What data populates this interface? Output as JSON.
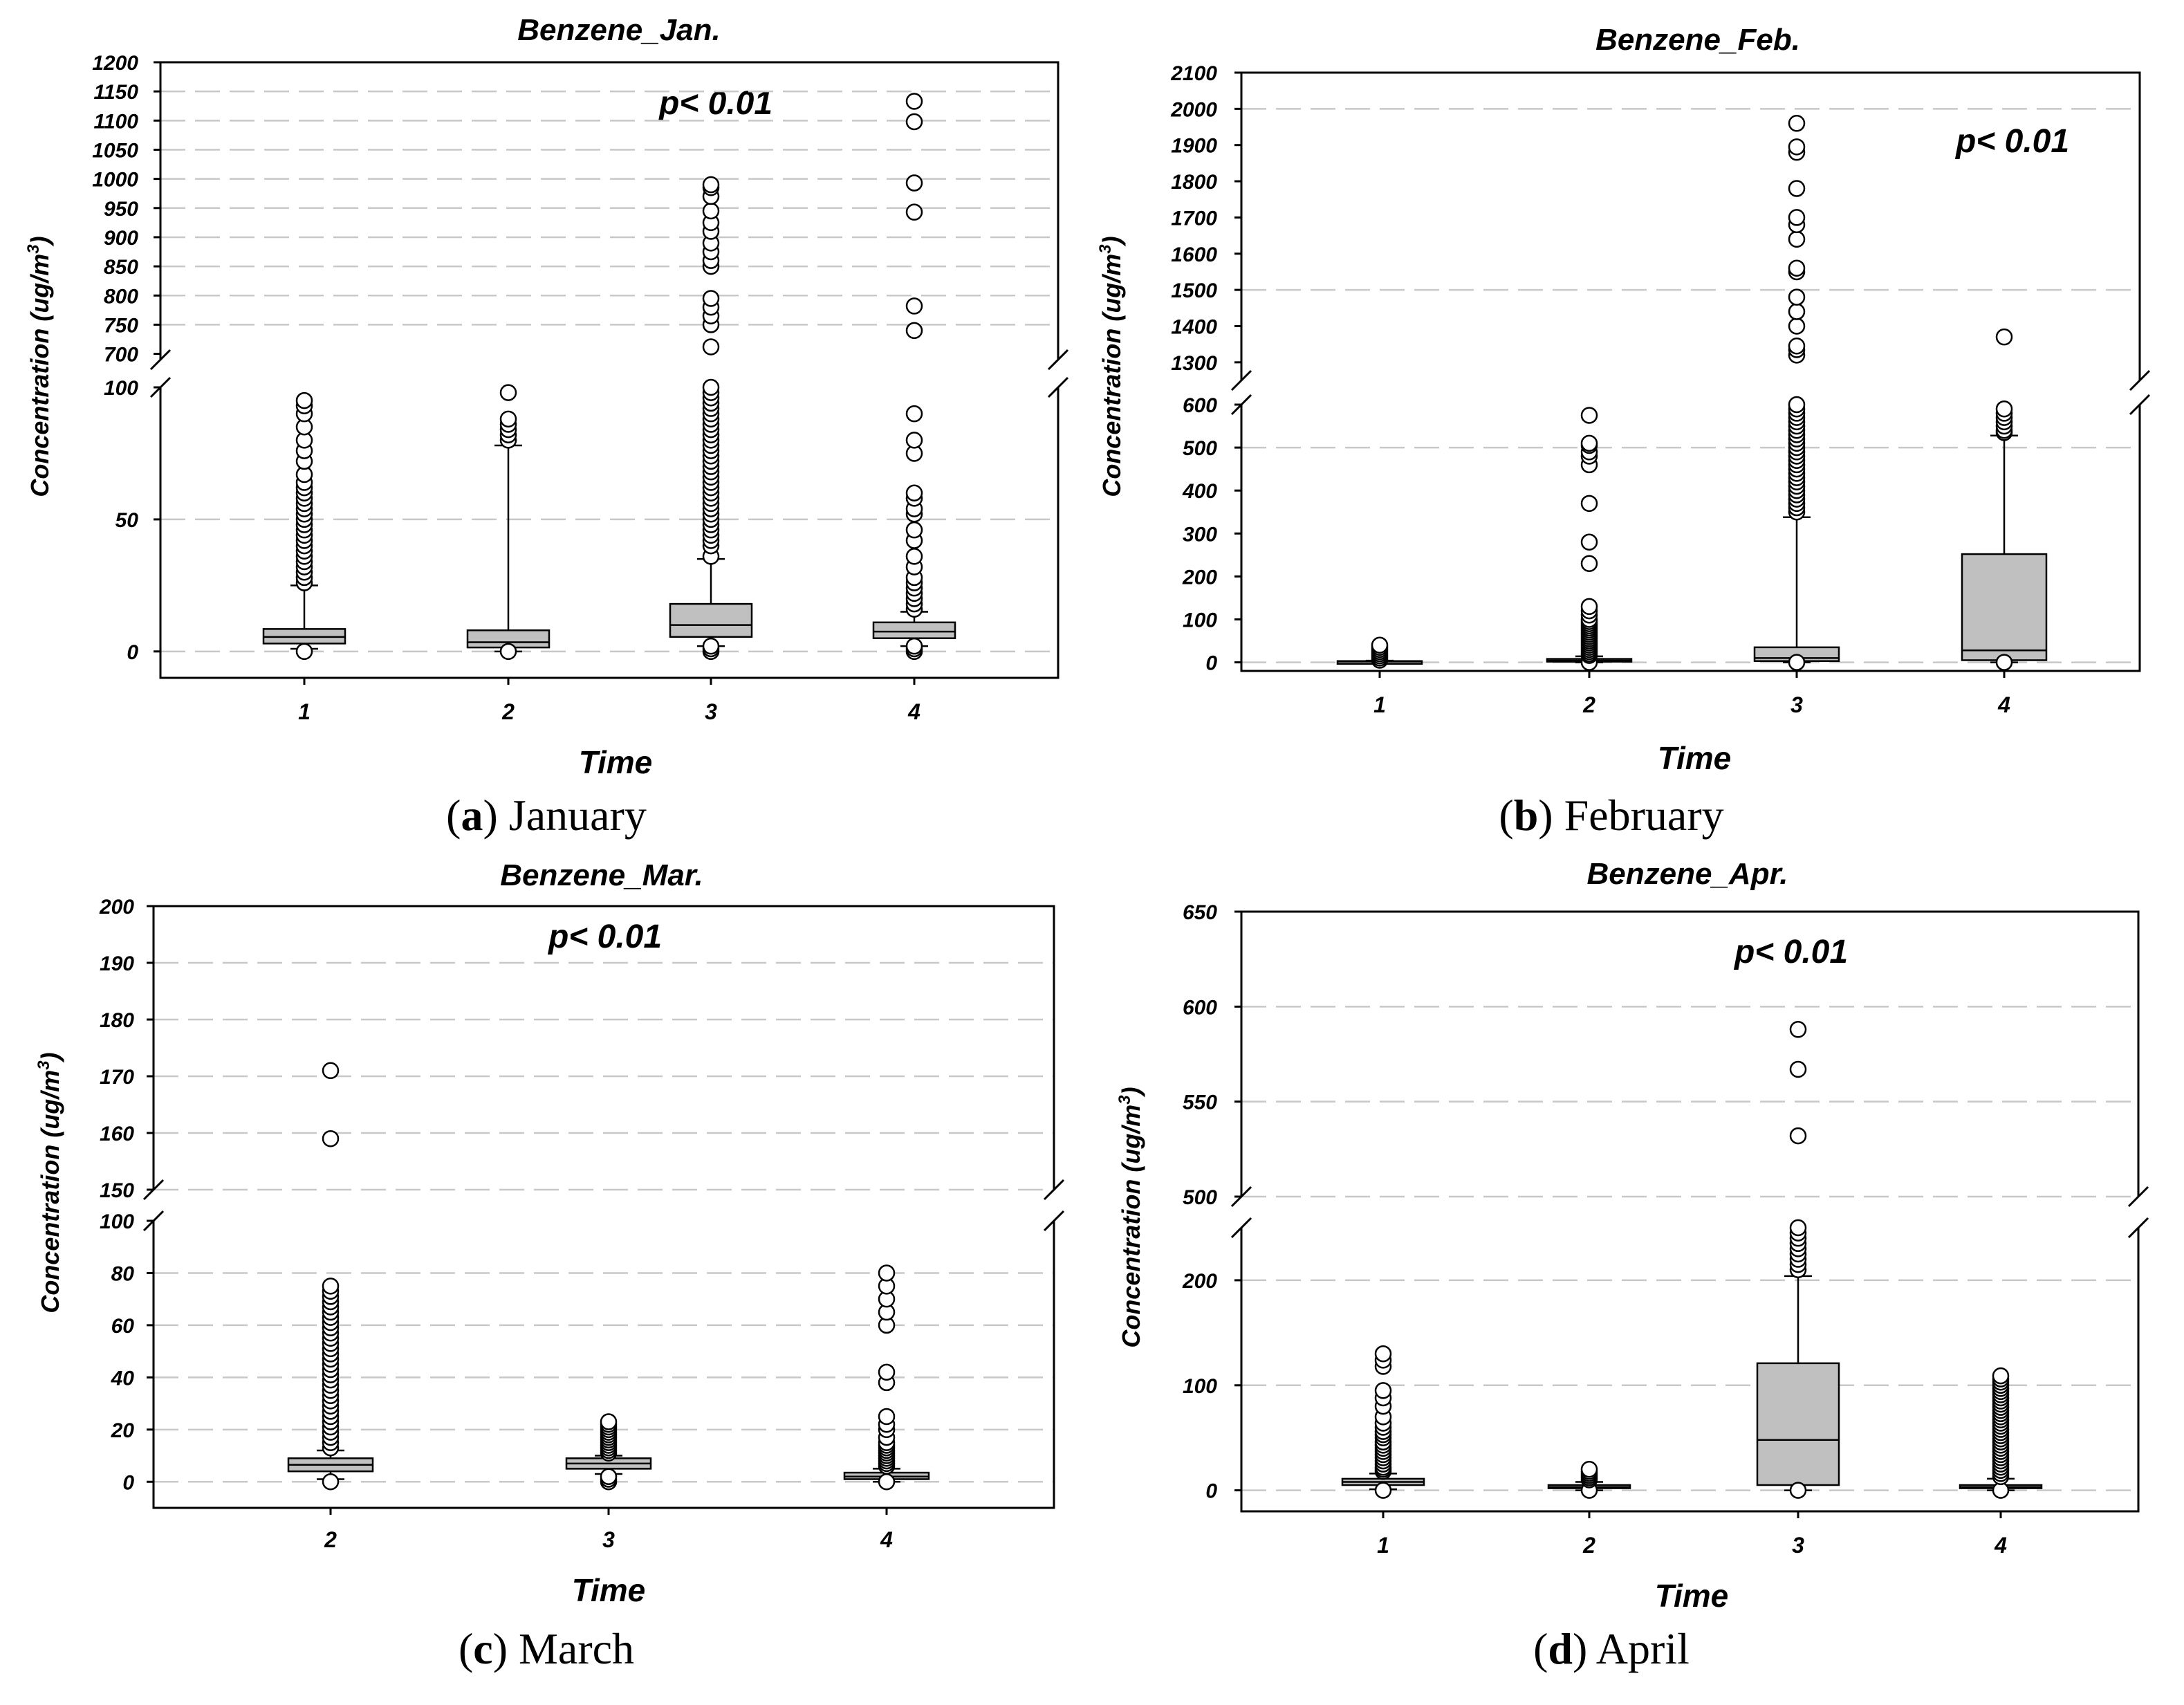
{
  "chart_data": [
    {
      "panel": "a",
      "type": "box",
      "title": "Benzene_Jan.",
      "annotation": "p< 0.01",
      "caption_letter": "a",
      "caption_text": " January",
      "xlabel": "Time",
      "ylabel_main": "Concentration (ug/m",
      "ylabel_sup": "3",
      "ylabel_tail": ")",
      "categories": [
        "1",
        "2",
        "3",
        "4"
      ],
      "y_axis": {
        "lower": {
          "range": [
            -10,
            100
          ],
          "ticks": [
            0,
            50,
            100
          ],
          "tick_labels": [
            "0",
            "50",
            "100"
          ],
          "grid": [
            0,
            50
          ]
        },
        "upper": {
          "range": [
            690,
            1200
          ],
          "ticks": [
            700,
            750,
            800,
            850,
            900,
            950,
            1000,
            1050,
            1100,
            1150,
            1200
          ],
          "tick_labels": [
            "700",
            "750",
            "800",
            "850",
            "900",
            "950",
            "1000",
            "1050",
            "1100",
            "1150",
            "1200"
          ],
          "grid": [
            750,
            800,
            850,
            900,
            950,
            1000,
            1050,
            1100,
            1150
          ]
        }
      },
      "boxes": [
        {
          "category": "1",
          "q1": 3,
          "median": 5.5,
          "q3": 8.5,
          "whisker_low": 1,
          "whisker_high": 25,
          "outliers": [
            0,
            26,
            28,
            30,
            32,
            34,
            36,
            38,
            40,
            42,
            44,
            46,
            48,
            50,
            52,
            54,
            56,
            58,
            60,
            62,
            64,
            67,
            72,
            76,
            80,
            85,
            90,
            93,
            95
          ]
        },
        {
          "category": "2",
          "q1": 1.5,
          "median": 3.5,
          "q3": 8,
          "whisker_low": 0,
          "whisker_high": 78,
          "outliers": [
            0,
            80,
            82,
            84,
            86,
            88,
            98
          ]
        },
        {
          "category": "3",
          "q1": 5.5,
          "median": 10,
          "q3": 18,
          "whisker_low": 2,
          "whisker_high": 35,
          "outliers": [
            0,
            1,
            2,
            36,
            40,
            42,
            44,
            46,
            48,
            50,
            52,
            54,
            56,
            58,
            60,
            62,
            64,
            66,
            68,
            70,
            72,
            74,
            76,
            78,
            80,
            82,
            84,
            86,
            88,
            90,
            92,
            94,
            96,
            98,
            100,
            712,
            750,
            765,
            780,
            795,
            850,
            860,
            875,
            890,
            910,
            925,
            945,
            970,
            985,
            990
          ]
        },
        {
          "category": "4",
          "q1": 5,
          "median": 7.5,
          "q3": 11,
          "whisker_low": 2,
          "whisker_high": 15,
          "outliers": [
            0,
            1,
            2,
            16,
            18,
            20,
            22,
            24,
            26,
            28,
            32,
            36,
            42,
            46,
            52,
            54,
            58,
            60,
            75,
            80,
            90,
            740,
            782,
            943,
            993,
            1098,
            1133
          ]
        }
      ]
    },
    {
      "panel": "b",
      "type": "box",
      "title": "Benzene_Feb.",
      "annotation": "p< 0.01",
      "caption_letter": "b",
      "caption_text": " February",
      "xlabel": "Time",
      "ylabel_main": "Concentration (ug/m",
      "ylabel_sup": "3",
      "ylabel_tail": ")",
      "categories": [
        "1",
        "2",
        "3",
        "4"
      ],
      "y_axis": {
        "lower": {
          "range": [
            -20,
            600
          ],
          "ticks": [
            0,
            100,
            200,
            300,
            400,
            500,
            600
          ],
          "tick_labels": [
            "0",
            "100",
            "200",
            "300",
            "400",
            "500",
            "600"
          ],
          "grid": [
            0,
            500
          ]
        },
        "upper": {
          "range": [
            1250,
            2100
          ],
          "ticks": [
            1300,
            1400,
            1500,
            1600,
            1700,
            1800,
            1900,
            2000,
            2100
          ],
          "tick_labels": [
            "1300",
            "1400",
            "1500",
            "1600",
            "1700",
            "1800",
            "1900",
            "2000",
            "2100"
          ],
          "grid": [
            1500,
            2000
          ]
        }
      },
      "boxes": [
        {
          "category": "1",
          "q1": 1,
          "median": 2,
          "q3": 3,
          "whisker_low": 0,
          "whisker_high": 4,
          "outliers": [
            5,
            10,
            15,
            20,
            25,
            30,
            35,
            40
          ]
        },
        {
          "category": "2",
          "q1": 2,
          "median": 4,
          "q3": 8,
          "whisker_low": 0,
          "whisker_high": 14,
          "outliers": [
            0,
            16,
            20,
            25,
            30,
            35,
            40,
            45,
            50,
            55,
            60,
            65,
            70,
            75,
            80,
            85,
            90,
            95,
            100,
            110,
            120,
            130,
            230,
            280,
            370,
            460,
            480,
            490,
            505,
            510,
            575
          ]
        },
        {
          "category": "3",
          "q1": 3,
          "median": 10,
          "q3": 35,
          "whisker_low": 0,
          "whisker_high": 338,
          "outliers": [
            0,
            350,
            360,
            370,
            380,
            390,
            400,
            410,
            420,
            430,
            440,
            450,
            460,
            470,
            480,
            490,
            500,
            510,
            520,
            530,
            540,
            550,
            560,
            570,
            580,
            590,
            600,
            1320,
            1335,
            1345,
            1400,
            1440,
            1480,
            1550,
            1560,
            1640,
            1680,
            1700,
            1780,
            1880,
            1895,
            1960
          ]
        },
        {
          "category": "4",
          "q1": 5,
          "median": 28,
          "q3": 252,
          "whisker_low": 0,
          "whisker_high": 528,
          "outliers": [
            0,
            535,
            540,
            550,
            560,
            570,
            580,
            590,
            1370
          ]
        }
      ]
    },
    {
      "panel": "c",
      "type": "box",
      "title": "Benzene_Mar.",
      "annotation": "p< 0.01",
      "caption_letter": "c",
      "caption_text": " March",
      "xlabel": "Time",
      "ylabel_main": "Concentration (ug/m",
      "ylabel_sup": "3",
      "ylabel_tail": ")",
      "categories": [
        "2",
        "3",
        "4"
      ],
      "y_axis": {
        "lower": {
          "range": [
            -10,
            100
          ],
          "ticks": [
            0,
            20,
            40,
            60,
            80,
            100
          ],
          "tick_labels": [
            "0",
            "20",
            "40",
            "60",
            "80",
            "100"
          ],
          "grid": [
            0,
            20,
            40,
            60,
            80
          ]
        },
        "upper": {
          "range": [
            150,
            200
          ],
          "ticks": [
            150,
            160,
            170,
            180,
            190,
            200
          ],
          "tick_labels": [
            "150",
            "160",
            "170",
            "180",
            "190",
            "200"
          ],
          "grid": [
            150,
            160,
            170,
            180,
            190
          ]
        }
      },
      "boxes": [
        {
          "category": "2",
          "q1": 4,
          "median": 6.5,
          "q3": 9,
          "whisker_low": 1,
          "whisker_high": 12,
          "outliers": [
            0,
            13,
            15,
            17,
            19,
            21,
            23,
            25,
            27,
            29,
            31,
            33,
            35,
            37,
            39,
            41,
            43,
            45,
            47,
            49,
            51,
            53,
            55,
            57,
            59,
            61,
            63,
            65,
            67,
            69,
            71,
            73,
            75,
            159,
            171
          ]
        },
        {
          "category": "3",
          "q1": 5,
          "median": 7,
          "q3": 9,
          "whisker_low": 3,
          "whisker_high": 10,
          "outliers": [
            0,
            1,
            2,
            11,
            12,
            13,
            14,
            15,
            16,
            17,
            18,
            19,
            20,
            21,
            22,
            23
          ]
        },
        {
          "category": "4",
          "q1": 1,
          "median": 2,
          "q3": 3.5,
          "whisker_low": 0,
          "whisker_high": 5,
          "outliers": [
            0,
            6,
            7,
            8,
            9,
            10,
            11,
            12,
            13,
            14,
            15,
            17,
            20,
            22,
            25,
            38,
            42,
            60,
            65,
            70,
            75,
            80
          ]
        }
      ]
    },
    {
      "panel": "d",
      "type": "box",
      "title": "Benzene_Apr.",
      "annotation": "p< 0.01",
      "caption_letter": "d",
      "caption_text": " April",
      "xlabel": "Time",
      "ylabel_main": "Concentration (ug/m",
      "ylabel_sup": "3",
      "ylabel_tail": ")",
      "categories": [
        "1",
        "2",
        "3",
        "4"
      ],
      "y_axis": {
        "lower": {
          "range": [
            -20,
            250
          ],
          "ticks": [
            0,
            100,
            200
          ],
          "tick_labels": [
            "0",
            "100",
            "200"
          ],
          "grid": [
            0,
            100,
            200
          ]
        },
        "upper": {
          "range": [
            500,
            650
          ],
          "ticks": [
            500,
            550,
            600,
            650
          ],
          "tick_labels": [
            "500",
            "550",
            "600",
            "650"
          ],
          "grid": [
            500,
            550,
            600
          ]
        }
      },
      "boxes": [
        {
          "category": "1",
          "q1": 5,
          "median": 8,
          "q3": 11,
          "whisker_low": 1,
          "whisker_high": 16,
          "outliers": [
            0,
            18,
            20,
            22,
            25,
            28,
            31,
            34,
            37,
            40,
            43,
            46,
            50,
            53,
            56,
            60,
            64,
            70,
            80,
            88,
            95,
            118,
            124,
            130
          ]
        },
        {
          "category": "2",
          "q1": 2,
          "median": 3,
          "q3": 5,
          "whisker_low": 0,
          "whisker_high": 8,
          "outliers": [
            0,
            10,
            12,
            14,
            16,
            18,
            20
          ]
        },
        {
          "category": "3",
          "q1": 5,
          "median": 48,
          "q3": 121,
          "whisker_low": 0,
          "whisker_high": 204,
          "outliers": [
            0,
            210,
            215,
            220,
            225,
            230,
            235,
            240,
            245,
            250,
            532,
            567,
            588
          ]
        },
        {
          "category": "4",
          "q1": 2,
          "median": 3,
          "q3": 5,
          "whisker_low": 0,
          "whisker_high": 11,
          "outliers": [
            0,
            13,
            16,
            19,
            22,
            25,
            28,
            31,
            34,
            37,
            40,
            43,
            46,
            49,
            52,
            55,
            58,
            61,
            64,
            67,
            70,
            73,
            76,
            79,
            82,
            85,
            88,
            91,
            94,
            97,
            100,
            103,
            106,
            109
          ]
        }
      ]
    }
  ]
}
